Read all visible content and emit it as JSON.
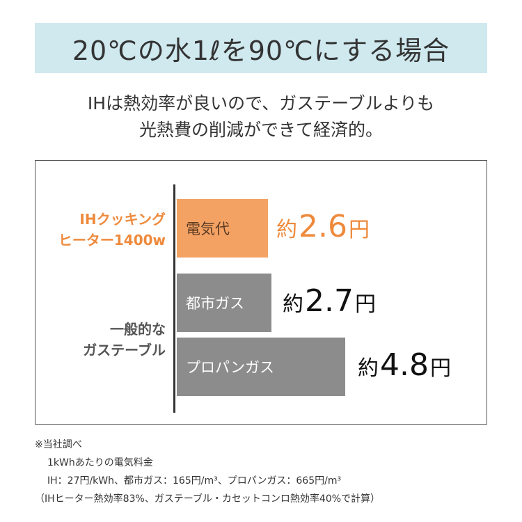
{
  "title": "20℃の水1ℓを90℃にする場合",
  "subtitle_lines": [
    "IHは熱効率が良いので、ガステーブルよりも",
    "光熱費の削減ができて経済的。"
  ],
  "colors": {
    "title_band": "#cfe9ef",
    "ih_bar": "#f4a264",
    "ih_text": "#ee8a3c",
    "gas_bar": "#8c8c8c",
    "text": "#333333"
  },
  "chart_data": {
    "type": "bar",
    "orientation": "horizontal",
    "groups": [
      {
        "label_lines": [
          "IHクッキング",
          "ヒーター1400w"
        ],
        "bars": [
          0
        ]
      },
      {
        "label_lines": [
          "一般的な",
          "ガステーブル"
        ],
        "bars": [
          1,
          2
        ]
      }
    ],
    "categories": [
      "電気代",
      "都市ガス",
      "プロパンガス"
    ],
    "values": [
      2.6,
      2.7,
      4.8
    ],
    "value_labels": [
      {
        "prefix": "約",
        "number": "2.6",
        "unit": "円"
      },
      {
        "prefix": "約",
        "number": "2.7",
        "unit": "円"
      },
      {
        "prefix": "約",
        "number": "4.8",
        "unit": "円"
      }
    ],
    "unit": "円",
    "grid": false
  },
  "notes": [
    "※当社調べ",
    "1kWhあたりの電気料金",
    "IH：27円/kWh、都市ガス：165円/m³、プロパンガス：665円/m³",
    "（IHヒーター熱効率83%、ガステーブル・カセットコンロ熱効率40%で計算）"
  ]
}
